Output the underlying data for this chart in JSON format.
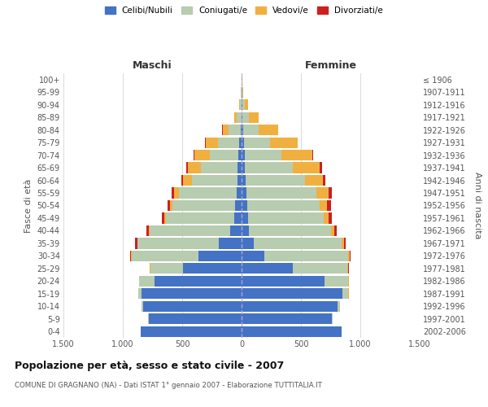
{
  "age_groups": [
    "0-4",
    "5-9",
    "10-14",
    "15-19",
    "20-24",
    "25-29",
    "30-34",
    "35-39",
    "40-44",
    "45-49",
    "50-54",
    "55-59",
    "60-64",
    "65-69",
    "70-74",
    "75-79",
    "80-84",
    "85-89",
    "90-94",
    "95-99",
    "100+"
  ],
  "birth_years": [
    "2002-2006",
    "1997-2001",
    "1992-1996",
    "1987-1991",
    "1982-1986",
    "1977-1981",
    "1972-1976",
    "1967-1971",
    "1962-1966",
    "1957-1961",
    "1952-1956",
    "1947-1951",
    "1942-1946",
    "1937-1941",
    "1932-1936",
    "1927-1931",
    "1922-1926",
    "1917-1921",
    "1912-1916",
    "1907-1911",
    "≤ 1906"
  ],
  "male": {
    "celibe": [
      850,
      780,
      830,
      840,
      730,
      490,
      365,
      195,
      95,
      60,
      55,
      40,
      35,
      35,
      30,
      20,
      10,
      3,
      2,
      0,
      0
    ],
    "coniugato": [
      2,
      5,
      10,
      30,
      130,
      280,
      560,
      680,
      680,
      580,
      530,
      490,
      380,
      310,
      240,
      180,
      100,
      40,
      15,
      5,
      2
    ],
    "vedovo": [
      0,
      0,
      0,
      0,
      2,
      2,
      5,
      5,
      5,
      10,
      20,
      40,
      80,
      110,
      130,
      100,
      50,
      20,
      5,
      2,
      0
    ],
    "divorziato": [
      0,
      0,
      0,
      0,
      2,
      5,
      10,
      15,
      20,
      20,
      20,
      20,
      15,
      10,
      5,
      5,
      2,
      0,
      0,
      0,
      0
    ]
  },
  "female": {
    "nubile": [
      840,
      760,
      810,
      850,
      700,
      430,
      195,
      100,
      65,
      55,
      50,
      40,
      35,
      30,
      25,
      20,
      15,
      10,
      5,
      2,
      0
    ],
    "coniugata": [
      2,
      5,
      20,
      50,
      200,
      460,
      700,
      740,
      690,
      640,
      610,
      590,
      500,
      400,
      310,
      220,
      130,
      55,
      20,
      5,
      2
    ],
    "vedova": [
      0,
      0,
      0,
      2,
      5,
      10,
      15,
      20,
      25,
      40,
      60,
      100,
      150,
      230,
      260,
      230,
      160,
      80,
      30,
      5,
      2
    ],
    "divorziata": [
      0,
      0,
      0,
      0,
      2,
      5,
      10,
      15,
      20,
      25,
      30,
      30,
      20,
      15,
      10,
      5,
      5,
      2,
      0,
      0,
      0
    ]
  },
  "colors": {
    "celibe": "#4472C4",
    "coniugato": "#B8CCB0",
    "vedovo": "#F0B040",
    "divorziato": "#CC2020"
  },
  "legend_labels": [
    "Celibi/Nubili",
    "Coniugati/e",
    "Vedovi/e",
    "Divorziati/e"
  ],
  "title": "Popolazione per età, sesso e stato civile - 2007",
  "subtitle": "COMUNE DI GRAGNANO (NA) - Dati ISTAT 1° gennaio 2007 - Elaborazione TUTTITALIA.IT",
  "xlim": 1500,
  "xlabel_maschi": "Maschi",
  "xlabel_femmine": "Femmine",
  "ylabel_left": "Fasce di età",
  "ylabel_right": "Anni di nascita",
  "bg_color": "#FFFFFF",
  "grid_color": "#CCCCCC",
  "bar_height": 0.85
}
